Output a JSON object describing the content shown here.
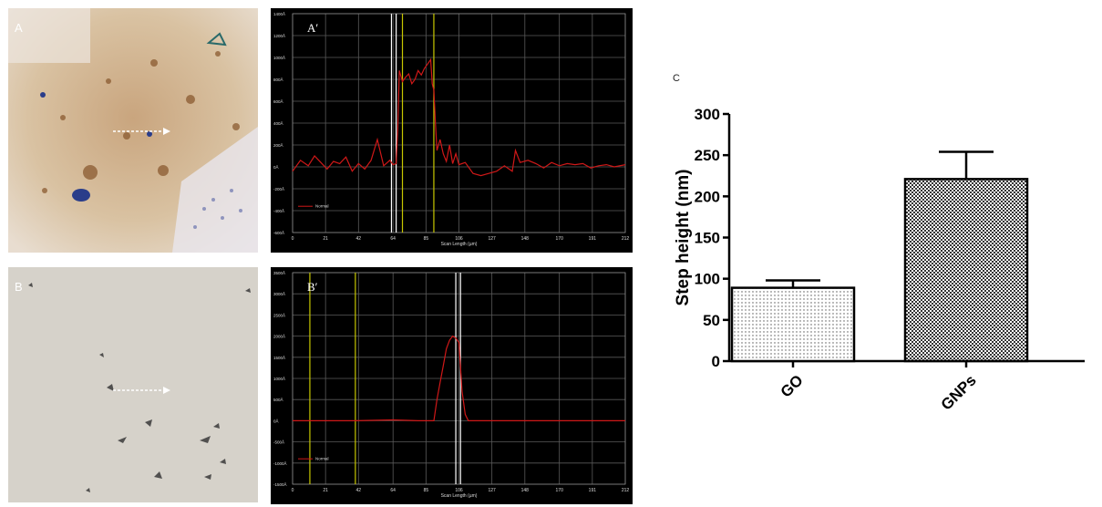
{
  "panels": {
    "A": {
      "label": "A"
    },
    "B": {
      "label": "B"
    },
    "A_prime": {
      "label": "A′",
      "y_ticks": [
        "1400Å",
        "1200Å",
        "1000Å",
        "800Å",
        "600Å",
        "400Å",
        "200Å",
        "0Å",
        "-200Å",
        "-400Å",
        "-600Å"
      ],
      "x_ticks": [
        "0",
        "21",
        "42",
        "64",
        "85",
        "106",
        "127",
        "148",
        "170",
        "191",
        "212"
      ],
      "xlabel": "Scan Length (µm)",
      "legend": "Normal"
    },
    "B_prime": {
      "label": "B′",
      "y_ticks": [
        "3500Å",
        "3000Å",
        "2500Å",
        "2000Å",
        "1500Å",
        "1000Å",
        "500Å",
        "0Å",
        "-500Å",
        "-1000Å",
        "-1500Å"
      ],
      "x_ticks": [
        "0",
        "21",
        "42",
        "64",
        "85",
        "106",
        "127",
        "148",
        "170",
        "191",
        "212"
      ],
      "xlabel": "Scan Length (µm)",
      "legend": "Normal"
    }
  },
  "chart_data": [
    {
      "panel": "A′",
      "type": "line",
      "xlabel": "Scan Length (µm)",
      "ylabel": "",
      "xlim": [
        0,
        212
      ],
      "ylim": [
        -600,
        1400
      ],
      "x_ticks": [
        0,
        21,
        42,
        64,
        85,
        106,
        127,
        148,
        170,
        191,
        212
      ],
      "y_ticks": [
        -600,
        -400,
        -200,
        0,
        200,
        400,
        600,
        800,
        1000,
        1200,
        1400
      ],
      "series": [
        {
          "name": "Normal",
          "color": "#d01818",
          "x": [
            0,
            5,
            10,
            14,
            18,
            22,
            26,
            30,
            34,
            38,
            42,
            46,
            50,
            54,
            58,
            62,
            64,
            66,
            67,
            68,
            70,
            72,
            74,
            76,
            78,
            80,
            82,
            84,
            86,
            88,
            89,
            90,
            91,
            92,
            94,
            96,
            98,
            100,
            102,
            104,
            106,
            110,
            115,
            120,
            125,
            130,
            135,
            140,
            142,
            145,
            150,
            155,
            160,
            165,
            170,
            175,
            180,
            185,
            190,
            195,
            200,
            205,
            212
          ],
          "y": [
            -40,
            60,
            10,
            100,
            40,
            -20,
            50,
            30,
            90,
            -40,
            30,
            -20,
            60,
            250,
            10,
            60,
            20,
            30,
            350,
            880,
            780,
            820,
            850,
            760,
            800,
            880,
            840,
            900,
            940,
            980,
            760,
            700,
            400,
            150,
            250,
            120,
            50,
            200,
            30,
            120,
            20,
            40,
            -60,
            -80,
            -60,
            -40,
            10,
            -40,
            150,
            40,
            60,
            30,
            -10,
            40,
            10,
            30,
            20,
            30,
            -10,
            10,
            20,
            0,
            20
          ]
        }
      ],
      "markers": [
        {
          "x": 63,
          "color": "#ffffff"
        },
        {
          "x": 66,
          "color": "#ffffff"
        },
        {
          "x": 70,
          "color": "#c8c800"
        },
        {
          "x": 90,
          "color": "#c8c800"
        }
      ]
    },
    {
      "panel": "B′",
      "type": "line",
      "xlabel": "Scan Length (µm)",
      "ylabel": "",
      "xlim": [
        0,
        212
      ],
      "ylim": [
        -1500,
        3500
      ],
      "x_ticks": [
        0,
        21,
        42,
        64,
        85,
        106,
        127,
        148,
        170,
        191,
        212
      ],
      "y_ticks": [
        -1500,
        -1000,
        -500,
        0,
        500,
        1000,
        1500,
        2000,
        2500,
        3000,
        3500
      ],
      "series": [
        {
          "name": "Normal",
          "color": "#d01818",
          "x": [
            0,
            20,
            40,
            64,
            80,
            90,
            92,
            94,
            96,
            98,
            100,
            102,
            104,
            106,
            108,
            110,
            112,
            120,
            140,
            160,
            180,
            200,
            212
          ],
          "y": [
            0,
            0,
            0,
            20,
            0,
            0,
            500,
            900,
            1300,
            1700,
            1900,
            2000,
            1950,
            1850,
            700,
            150,
            0,
            0,
            0,
            0,
            0,
            0,
            0
          ]
        }
      ],
      "markers": [
        {
          "x": 11,
          "color": "#c8c800"
        },
        {
          "x": 40,
          "color": "#c8c800"
        },
        {
          "x": 104,
          "color": "#ffffff"
        },
        {
          "x": 107,
          "color": "#ffffff"
        }
      ]
    },
    {
      "panel": "C",
      "type": "bar",
      "title": "C",
      "categories": [
        "GO",
        "GNPs"
      ],
      "values": [
        89,
        221
      ],
      "error": [
        9,
        33
      ],
      "ylabel": "Step height (nm)",
      "xlabel": "",
      "ylim": [
        0,
        300
      ],
      "y_ticks": [
        0,
        50,
        100,
        150,
        200,
        250,
        300
      ]
    }
  ]
}
